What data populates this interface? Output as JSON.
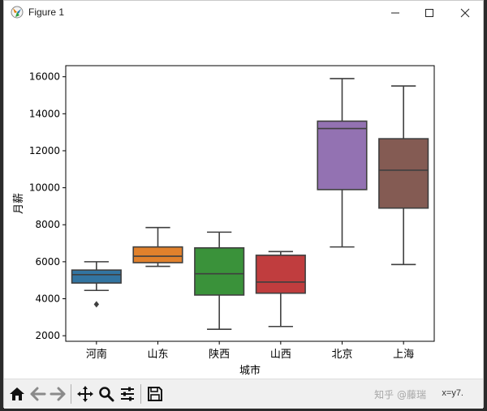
{
  "window": {
    "title": "Figure 1"
  },
  "toolbar": {
    "icons": [
      "home-icon",
      "back-arrow-icon",
      "forward-arrow-icon",
      "pan-icon",
      "zoom-icon",
      "configure-subplots-icon",
      "save-icon"
    ],
    "coords_text": "x=y7.",
    "watermark": "知乎 @藤瑞"
  },
  "chart_data": {
    "type": "boxplot",
    "xlabel": "城市",
    "ylabel": "月薪",
    "ylim": [
      1700,
      16600
    ],
    "yticks": [
      2000,
      4000,
      6000,
      8000,
      10000,
      12000,
      14000,
      16000
    ],
    "categories": [
      "河南",
      "山东",
      "陕西",
      "山西",
      "北京",
      "上海"
    ],
    "boxes": [
      {
        "name": "河南",
        "whisker_low": 4450,
        "q1": 4850,
        "median": 5300,
        "q3": 5550,
        "whisker_high": 6000,
        "outliers": [
          3700
        ],
        "color": "#3274a1"
      },
      {
        "name": "山东",
        "whisker_low": 5750,
        "q1": 5950,
        "median": 6300,
        "q3": 6800,
        "whisker_high": 7850,
        "outliers": [],
        "color": "#e1812c"
      },
      {
        "name": "陕西",
        "whisker_low": 2350,
        "q1": 4200,
        "median": 5350,
        "q3": 6750,
        "whisker_high": 7600,
        "outliers": [],
        "color": "#3a923a"
      },
      {
        "name": "山西",
        "whisker_low": 2500,
        "q1": 4300,
        "median": 4900,
        "q3": 6350,
        "whisker_high": 6550,
        "outliers": [],
        "color": "#c03d3e"
      },
      {
        "name": "北京",
        "whisker_low": 6800,
        "q1": 9900,
        "median": 13200,
        "q3": 13600,
        "whisker_high": 15900,
        "outliers": [],
        "color": "#9372b2"
      },
      {
        "name": "上海",
        "whisker_low": 5850,
        "q1": 8900,
        "median": 10950,
        "q3": 12650,
        "whisker_high": 15500,
        "outliers": [],
        "color": "#845b53"
      }
    ],
    "grid": false
  }
}
